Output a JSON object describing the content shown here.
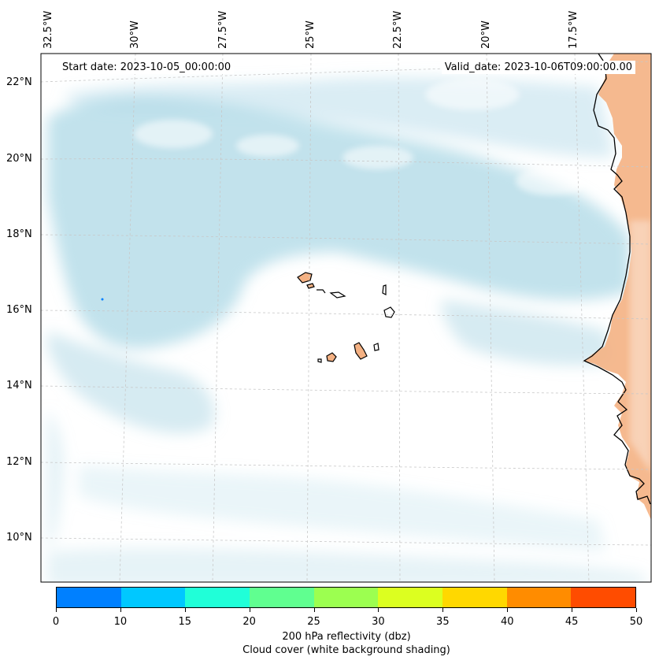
{
  "map": {
    "start_date_label": "Start date: 2023-10-05_00:00:00",
    "valid_date_label": "Valid_date: 2023-10-06T09:00:00.00",
    "longitude_labels": [
      "32.5°W",
      "30°W",
      "27.5°W",
      "25°W",
      "22.5°W",
      "20°W",
      "17.5°W"
    ],
    "latitude_labels": [
      "22°N",
      "20°N",
      "18°N",
      "16°N",
      "14°N",
      "12°N",
      "10°N"
    ],
    "land_color": "#f4b183",
    "cloud_color": "#add8e6",
    "coastline_color": "#000000",
    "gridline_style": "dashed-gray"
  },
  "colorbar": {
    "ticks": [
      "0",
      "10",
      "15",
      "20",
      "25",
      "30",
      "35",
      "40",
      "45",
      "50"
    ],
    "colors": [
      "#0080ff",
      "#00c8ff",
      "#20ffd8",
      "#60ff90",
      "#9cff50",
      "#dcff20",
      "#ffd800",
      "#ff8c00",
      "#ff4c00"
    ],
    "label_line1": "200 hPa reflectivity (dbz)",
    "label_line2": "Cloud cover (white background shading)"
  }
}
